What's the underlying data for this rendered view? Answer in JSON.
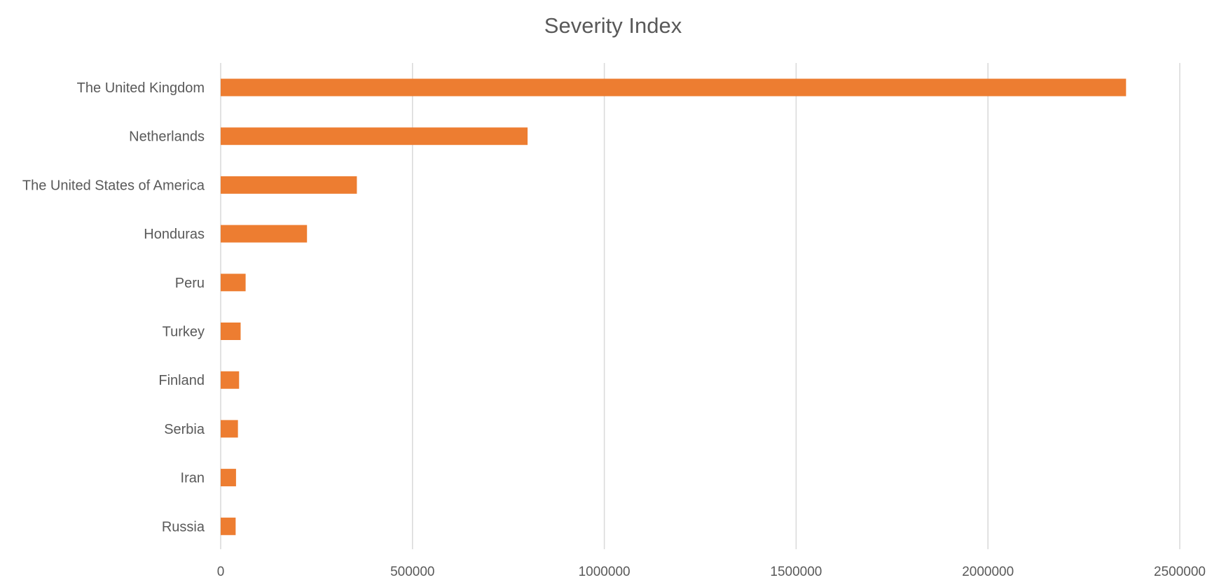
{
  "chart_data": {
    "type": "bar",
    "orientation": "horizontal",
    "title": "Severity Index",
    "xlabel": "",
    "ylabel": "",
    "categories": [
      "The United Kingdom",
      "Netherlands",
      "The United States of America",
      "Honduras",
      "Peru",
      "Turkey",
      "Finland",
      "Serbia",
      "Iran",
      "Russia"
    ],
    "values": [
      2360000,
      800000,
      355000,
      225000,
      65000,
      52000,
      48000,
      45000,
      40000,
      39000
    ],
    "xlim": [
      0,
      2500000
    ],
    "ticks": [
      0,
      500000,
      1000000,
      1500000,
      2000000,
      2500000
    ],
    "tick_labels": [
      "0",
      "500000",
      "1000000",
      "1500000",
      "2000000",
      "2500000"
    ],
    "bar_color": "#ed7d31",
    "grid": true,
    "legend": "none"
  }
}
